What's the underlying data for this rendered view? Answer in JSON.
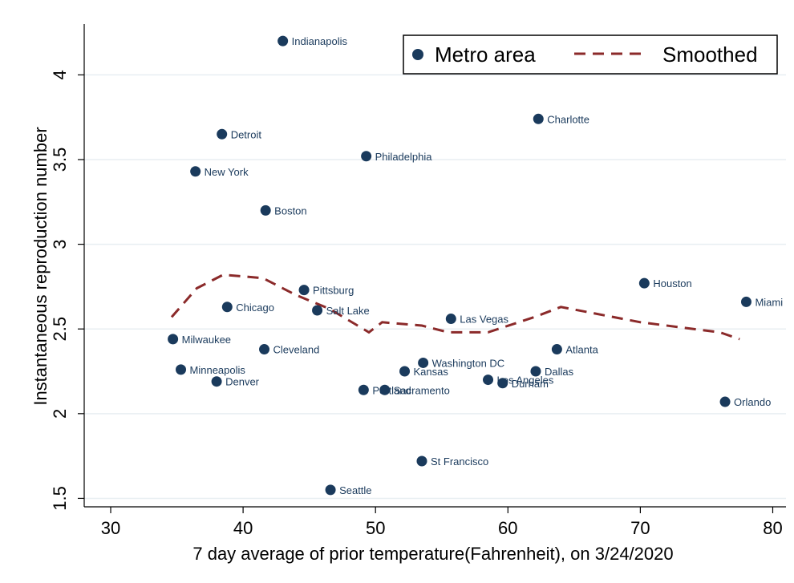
{
  "chart_data": {
    "type": "scatter",
    "xlabel": "7 day average of prior temperature(Fahrenheit), on 3/24/2020",
    "ylabel": "Instantaneous reproduction number",
    "xlim": [
      28,
      81
    ],
    "ylim": [
      1.45,
      4.3
    ],
    "xticks": [
      30,
      40,
      50,
      60,
      70,
      80
    ],
    "yticks": [
      1.5,
      2,
      2.5,
      3,
      3.5,
      4
    ],
    "grid": "horizontal",
    "legend_position": "top-right",
    "colors": {
      "points": "#1a3a5c",
      "smoothed": "#8b2a2a",
      "grid": "#e8eef2"
    },
    "series": [
      {
        "name": "Metro area",
        "points": [
          {
            "label": "Indianapolis",
            "x": 43.0,
            "y": 4.2
          },
          {
            "label": "Charlotte",
            "x": 62.3,
            "y": 3.74
          },
          {
            "label": "Detroit",
            "x": 38.4,
            "y": 3.65
          },
          {
            "label": "Philadelphia",
            "x": 49.3,
            "y": 3.52
          },
          {
            "label": "New York",
            "x": 36.4,
            "y": 3.43
          },
          {
            "label": "Boston",
            "x": 41.7,
            "y": 3.2
          },
          {
            "label": "Houston",
            "x": 70.3,
            "y": 2.77
          },
          {
            "label": "Pittsburg",
            "x": 44.6,
            "y": 2.73
          },
          {
            "label": "Miami",
            "x": 78.0,
            "y": 2.66
          },
          {
            "label": "Chicago",
            "x": 38.8,
            "y": 2.63
          },
          {
            "label": "Salt Lake",
            "x": 45.6,
            "y": 2.61
          },
          {
            "label": "Las Vegas",
            "x": 55.7,
            "y": 2.56
          },
          {
            "label": "Milwaukee",
            "x": 34.7,
            "y": 2.44
          },
          {
            "label": "Cleveland",
            "x": 41.6,
            "y": 2.38
          },
          {
            "label": "Atlanta",
            "x": 63.7,
            "y": 2.38
          },
          {
            "label": "Washington DC",
            "x": 53.6,
            "y": 2.3
          },
          {
            "label": "Minneapolis",
            "x": 35.3,
            "y": 2.26
          },
          {
            "label": "Kansas",
            "x": 52.2,
            "y": 2.25
          },
          {
            "label": "Dallas",
            "x": 62.1,
            "y": 2.25
          },
          {
            "label": "Los Angeles",
            "x": 58.5,
            "y": 2.2
          },
          {
            "label": "Denver",
            "x": 38.0,
            "y": 2.19
          },
          {
            "label": "Durham",
            "x": 59.6,
            "y": 2.18
          },
          {
            "label": "Portland",
            "x": 49.1,
            "y": 2.14
          },
          {
            "label": "Sacramento",
            "x": 50.7,
            "y": 2.14
          },
          {
            "label": "Orlando",
            "x": 76.4,
            "y": 2.07
          },
          {
            "label": "St Francisco",
            "x": 53.5,
            "y": 1.72
          },
          {
            "label": "Seattle",
            "x": 46.6,
            "y": 1.55
          }
        ]
      },
      {
        "name": "Smoothed",
        "style": "dashed",
        "points": [
          {
            "x": 34.6,
            "y": 2.57
          },
          {
            "x": 36.5,
            "y": 2.74
          },
          {
            "x": 38.5,
            "y": 2.82
          },
          {
            "x": 41.5,
            "y": 2.8
          },
          {
            "x": 44.0,
            "y": 2.7
          },
          {
            "x": 46.5,
            "y": 2.62
          },
          {
            "x": 49.5,
            "y": 2.48
          },
          {
            "x": 50.5,
            "y": 2.54
          },
          {
            "x": 53.5,
            "y": 2.52
          },
          {
            "x": 55.5,
            "y": 2.48
          },
          {
            "x": 58.5,
            "y": 2.48
          },
          {
            "x": 62.0,
            "y": 2.57
          },
          {
            "x": 64.0,
            "y": 2.63
          },
          {
            "x": 70.0,
            "y": 2.54
          },
          {
            "x": 76.0,
            "y": 2.48
          },
          {
            "x": 77.5,
            "y": 2.44
          }
        ]
      }
    ]
  }
}
